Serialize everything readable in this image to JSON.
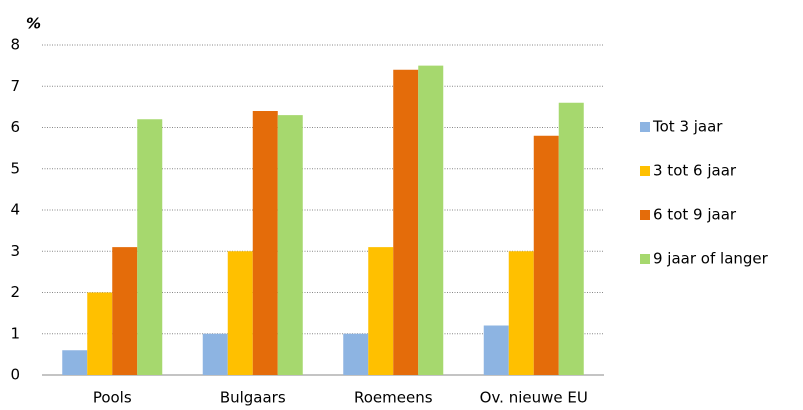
{
  "chart_data": {
    "type": "bar",
    "y_label": "%",
    "categories": [
      "Pools",
      "Bulgaars",
      "Roemeens",
      "Ov. nieuwe EU"
    ],
    "series": [
      {
        "name": "Tot 3 jaar",
        "color": "#8db4e2",
        "values": [
          0.6,
          1.0,
          1.0,
          1.2
        ]
      },
      {
        "name": "3 tot 6 jaar",
        "color": "#ffc000",
        "values": [
          2.0,
          3.0,
          3.1,
          3.0
        ]
      },
      {
        "name": "6 tot 9 jaar",
        "color": "#e46c0a",
        "values": [
          3.1,
          6.4,
          7.4,
          5.8
        ]
      },
      {
        "name": "9 jaar of langer",
        "color": "#a6d86e",
        "values": [
          6.2,
          6.3,
          7.5,
          6.6
        ]
      }
    ],
    "ylim": [
      0,
      8
    ],
    "yticks": [
      0,
      1,
      2,
      3,
      4,
      5,
      6,
      7,
      8
    ],
    "grid": true,
    "legend": "right"
  }
}
